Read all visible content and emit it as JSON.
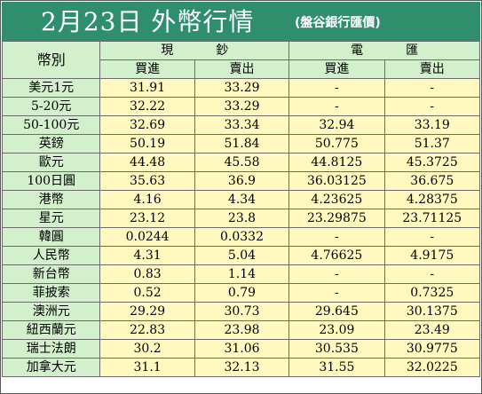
{
  "header": {
    "title": "2月23日 外幣行情",
    "source": "(盤谷銀行匯價)"
  },
  "table": {
    "currency_header": "幣別",
    "cash_header": "現鈔",
    "tt_header": "電匯",
    "buy_label": "買進",
    "sell_label": "賣出",
    "rows": [
      {
        "name": "美元1元",
        "cash_buy": "31.91",
        "cash_sell": "33.29",
        "tt_buy": "-",
        "tt_sell": "-"
      },
      {
        "name": "5-20元",
        "cash_buy": "32.22",
        "cash_sell": "33.29",
        "tt_buy": "-",
        "tt_sell": "-"
      },
      {
        "name": "50-100元",
        "cash_buy": "32.69",
        "cash_sell": "33.34",
        "tt_buy": "32.94",
        "tt_sell": "33.19"
      },
      {
        "name": "英鎊",
        "cash_buy": "50.19",
        "cash_sell": "51.84",
        "tt_buy": "50.775",
        "tt_sell": "51.37"
      },
      {
        "name": "歐元",
        "cash_buy": "44.48",
        "cash_sell": "45.58",
        "tt_buy": "44.8125",
        "tt_sell": "45.3725"
      },
      {
        "name": "100日圓",
        "cash_buy": "35.63",
        "cash_sell": "36.9",
        "tt_buy": "36.03125",
        "tt_sell": "36.675"
      },
      {
        "name": "港幣",
        "cash_buy": "4.16",
        "cash_sell": "4.34",
        "tt_buy": "4.23625",
        "tt_sell": "4.28375"
      },
      {
        "name": "星元",
        "cash_buy": "23.12",
        "cash_sell": "23.8",
        "tt_buy": "23.29875",
        "tt_sell": "23.71125"
      },
      {
        "name": "韓圓",
        "cash_buy": "0.0244",
        "cash_sell": "0.0332",
        "tt_buy": "-",
        "tt_sell": "-"
      },
      {
        "name": "人民幣",
        "cash_buy": "4.31",
        "cash_sell": "5.04",
        "tt_buy": "4.76625",
        "tt_sell": "4.9175"
      },
      {
        "name": "新台幣",
        "cash_buy": "0.83",
        "cash_sell": "1.14",
        "tt_buy": "-",
        "tt_sell": "-"
      },
      {
        "name": "菲披索",
        "cash_buy": "0.52",
        "cash_sell": "0.79",
        "tt_buy": "-",
        "tt_sell": "0.7325"
      },
      {
        "name": "澳洲元",
        "cash_buy": "29.29",
        "cash_sell": "30.73",
        "tt_buy": "29.645",
        "tt_sell": "30.1375"
      },
      {
        "name": "紐西蘭元",
        "cash_buy": "22.83",
        "cash_sell": "23.98",
        "tt_buy": "23.09",
        "tt_sell": "23.49"
      },
      {
        "name": "瑞士法朗",
        "cash_buy": "30.2",
        "cash_sell": "31.06",
        "tt_buy": "30.535",
        "tt_sell": "30.9775"
      },
      {
        "name": "加拿大元",
        "cash_buy": "31.1",
        "cash_sell": "32.13",
        "tt_buy": "31.55",
        "tt_sell": "32.0225"
      }
    ]
  },
  "colors": {
    "title_bg": "#2f8f6d",
    "currency_bg": "#d2f0cc",
    "value_bg": "#fff9c0",
    "border": "#6b6b6b"
  }
}
